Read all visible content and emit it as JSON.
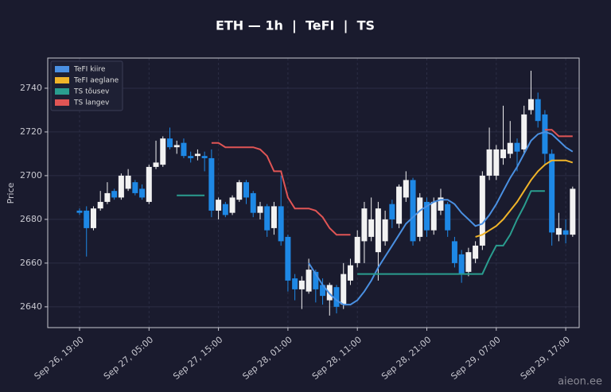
{
  "chart_data": {
    "type": "candlestick",
    "title": "ETH — 1h  |  TeFI  |  TS",
    "ylabel": "Price",
    "watermark": "aieon.ee",
    "x": [
      "Sep 26, 19:00",
      "Sep 26, 20:00",
      "Sep 26, 21:00",
      "Sep 26, 22:00",
      "Sep 26, 23:00",
      "Sep 27, 00:00",
      "Sep 27, 01:00",
      "Sep 27, 02:00",
      "Sep 27, 03:00",
      "Sep 27, 04:00",
      "Sep 27, 05:00",
      "Sep 27, 06:00",
      "Sep 27, 07:00",
      "Sep 27, 08:00",
      "Sep 27, 09:00",
      "Sep 27, 10:00",
      "Sep 27, 11:00",
      "Sep 27, 12:00",
      "Sep 27, 13:00",
      "Sep 27, 14:00",
      "Sep 27, 15:00",
      "Sep 27, 16:00",
      "Sep 27, 17:00",
      "Sep 27, 18:00",
      "Sep 27, 19:00",
      "Sep 27, 20:00",
      "Sep 27, 21:00",
      "Sep 27, 22:00",
      "Sep 27, 23:00",
      "Sep 28, 00:00",
      "Sep 28, 01:00",
      "Sep 28, 02:00",
      "Sep 28, 03:00",
      "Sep 28, 04:00",
      "Sep 28, 05:00",
      "Sep 28, 06:00",
      "Sep 28, 07:00",
      "Sep 28, 08:00",
      "Sep 28, 09:00",
      "Sep 28, 10:00",
      "Sep 28, 11:00",
      "Sep 28, 12:00",
      "Sep 28, 13:00",
      "Sep 28, 14:00",
      "Sep 28, 15:00",
      "Sep 28, 16:00",
      "Sep 28, 17:00",
      "Sep 28, 18:00",
      "Sep 28, 19:00",
      "Sep 28, 20:00",
      "Sep 28, 21:00",
      "Sep 28, 22:00",
      "Sep 28, 23:00",
      "Sep 29, 00:00",
      "Sep 29, 01:00",
      "Sep 29, 02:00",
      "Sep 29, 03:00",
      "Sep 29, 04:00",
      "Sep 29, 05:00",
      "Sep 29, 06:00",
      "Sep 29, 07:00",
      "Sep 29, 08:00",
      "Sep 29, 09:00",
      "Sep 29, 10:00",
      "Sep 29, 11:00",
      "Sep 29, 12:00",
      "Sep 29, 13:00",
      "Sep 29, 14:00",
      "Sep 29, 15:00",
      "Sep 29, 16:00",
      "Sep 29, 17:00",
      "Sep 29, 18:00"
    ],
    "open": [
      2684,
      2684,
      2676,
      2685,
      2688,
      2693,
      2690,
      2694,
      2697,
      2694,
      2688,
      2704,
      2705,
      2717,
      2713,
      2715,
      2709,
      2709,
      2709,
      2708,
      2684,
      2687,
      2683,
      2689,
      2697,
      2692,
      2683,
      2686,
      2676,
      2686,
      2672,
      2653,
      2648,
      2647,
      2656,
      2650,
      2643,
      2649,
      2641,
      2652,
      2660,
      2670,
      2672,
      2665,
      2670,
      2687,
      2678,
      2690,
      2698,
      2672,
      2688,
      2675,
      2684,
      2687,
      2670,
      2664,
      2656,
      2662,
      2668,
      2700,
      2700,
      2708,
      2710,
      2715,
      2712,
      2730,
      2735,
      2728,
      2710,
      2673,
      2675,
      2673
    ],
    "high": [
      2685,
      2686,
      2686,
      2693,
      2697,
      2694,
      2701,
      2703,
      2698,
      2696,
      2705,
      2716,
      2718,
      2722,
      2716,
      2717,
      2711,
      2712,
      2711,
      2712,
      2690,
      2688,
      2691,
      2698,
      2698,
      2693,
      2688,
      2687,
      2688,
      2700,
      2673,
      2655,
      2654,
      2662,
      2657,
      2653,
      2651,
      2650,
      2660,
      2662,
      2675,
      2688,
      2690,
      2688,
      2684,
      2689,
      2696,
      2702,
      2699,
      2692,
      2690,
      2690,
      2694,
      2688,
      2672,
      2666,
      2667,
      2670,
      2702,
      2722,
      2714,
      2732,
      2725,
      2717,
      2732,
      2748,
      2738,
      2730,
      2712,
      2683,
      2680,
      2695
    ],
    "low": [
      2682,
      2663,
      2675,
      2684,
      2687,
      2689,
      2689,
      2693,
      2691,
      2689,
      2687,
      2703,
      2704,
      2712,
      2710,
      2708,
      2706,
      2707,
      2702,
      2681,
      2680,
      2681,
      2682,
      2688,
      2687,
      2681,
      2680,
      2672,
      2673,
      2668,
      2647,
      2643,
      2639,
      2646,
      2642,
      2641,
      2636,
      2637,
      2639,
      2650,
      2658,
      2660,
      2670,
      2652,
      2668,
      2676,
      2676,
      2688,
      2668,
      2670,
      2672,
      2673,
      2682,
      2672,
      2658,
      2651,
      2654,
      2660,
      2666,
      2698,
      2698,
      2705,
      2708,
      2702,
      2710,
      2728,
      2722,
      2705,
      2668,
      2670,
      2669,
      2672
    ],
    "close": [
      2683,
      2676,
      2685,
      2688,
      2692,
      2690,
      2700,
      2700,
      2692,
      2690,
      2704,
      2706,
      2717,
      2713,
      2714,
      2709,
      2708,
      2710,
      2708,
      2684,
      2689,
      2682,
      2690,
      2697,
      2690,
      2683,
      2686,
      2675,
      2686,
      2670,
      2652,
      2648,
      2652,
      2657,
      2648,
      2645,
      2650,
      2640,
      2655,
      2659,
      2672,
      2685,
      2680,
      2685,
      2680,
      2680,
      2695,
      2698,
      2670,
      2690,
      2675,
      2688,
      2690,
      2675,
      2660,
      2655,
      2665,
      2668,
      2700,
      2712,
      2712,
      2712,
      2715,
      2711,
      2728,
      2735,
      2725,
      2710,
      2674,
      2676,
      2673,
      2694
    ],
    "up_color": "#f2f2f2",
    "down_color": "#1e88e5",
    "series": [
      {
        "name": "TeFI kiire",
        "color": "#4a90e2",
        "values": [
          null,
          null,
          null,
          null,
          null,
          null,
          null,
          null,
          null,
          null,
          null,
          null,
          null,
          null,
          null,
          null,
          null,
          null,
          null,
          null,
          null,
          null,
          null,
          null,
          null,
          null,
          null,
          null,
          null,
          null,
          null,
          null,
          null,
          2660,
          2655,
          2650,
          2646,
          2643,
          2641,
          2641,
          2643,
          2647,
          2652,
          2658,
          2663,
          2668,
          2673,
          2678,
          2681,
          2684,
          2686,
          2688,
          2689,
          2689,
          2687,
          2683,
          2680,
          2677,
          2678,
          2682,
          2687,
          2693,
          2699,
          2704,
          2710,
          2716,
          2719,
          2720,
          2719,
          2716,
          2713,
          2711
        ]
      },
      {
        "name": "TeFI aeglane",
        "color": "#f0b429",
        "values": [
          null,
          null,
          null,
          null,
          null,
          null,
          null,
          null,
          null,
          null,
          null,
          null,
          null,
          null,
          null,
          null,
          null,
          null,
          null,
          null,
          null,
          null,
          null,
          null,
          null,
          null,
          null,
          null,
          null,
          null,
          null,
          null,
          null,
          null,
          null,
          null,
          null,
          null,
          null,
          null,
          null,
          null,
          null,
          null,
          null,
          null,
          null,
          null,
          null,
          null,
          null,
          null,
          null,
          null,
          null,
          null,
          null,
          2672,
          2673,
          2675,
          2677,
          2680,
          2684,
          2688,
          2693,
          2698,
          2702,
          2705,
          2707,
          2707,
          2707,
          2706
        ]
      },
      {
        "name": "TS tõusev",
        "color": "#2a9d8f",
        "values": [
          null,
          null,
          null,
          null,
          null,
          null,
          null,
          null,
          null,
          null,
          null,
          null,
          null,
          null,
          2691,
          2691,
          2691,
          2691,
          2691,
          null,
          null,
          null,
          null,
          null,
          null,
          null,
          null,
          null,
          null,
          null,
          null,
          null,
          null,
          null,
          null,
          null,
          null,
          null,
          null,
          null,
          2655,
          2655,
          2655,
          2655,
          2655,
          2655,
          2655,
          2655,
          2655,
          2655,
          2655,
          2655,
          2655,
          2655,
          2655,
          2655,
          2655,
          2655,
          2655,
          2662,
          2668,
          2668,
          2673,
          2680,
          2686,
          2693,
          2693,
          2693,
          null,
          null,
          null,
          null
        ]
      },
      {
        "name": "TS langev",
        "color": "#e05555",
        "values": [
          null,
          null,
          null,
          null,
          null,
          null,
          null,
          null,
          null,
          null,
          null,
          null,
          null,
          null,
          null,
          null,
          null,
          null,
          null,
          2715,
          2715,
          2713,
          2713,
          2713,
          2713,
          2713,
          2712,
          2709,
          2702,
          2702,
          2690,
          2685,
          2685,
          2685,
          2684,
          2681,
          2676,
          2673,
          2673,
          2673,
          null,
          null,
          null,
          null,
          null,
          null,
          null,
          null,
          null,
          null,
          null,
          null,
          null,
          null,
          null,
          null,
          null,
          null,
          null,
          null,
          null,
          null,
          null,
          null,
          null,
          null,
          null,
          2721,
          2721,
          2718,
          2718,
          2718
        ]
      }
    ],
    "ylim": [
      2630.5,
      2753.8
    ],
    "yticks": [
      2640,
      2660,
      2680,
      2700,
      2720,
      2740
    ],
    "xticks": [
      "Sep 26, 19:00",
      "Sep 27, 05:00",
      "Sep 27, 15:00",
      "Sep 28, 01:00",
      "Sep 28, 11:00",
      "Sep 28, 21:00",
      "Sep 29, 07:00",
      "Sep 29, 17:00"
    ],
    "grid": true,
    "legend": "upper left"
  }
}
